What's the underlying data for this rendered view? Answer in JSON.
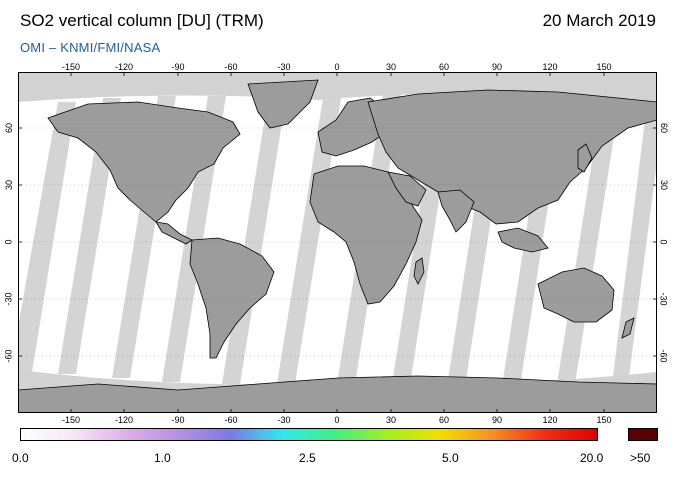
{
  "header": {
    "title": "SO2 vertical column [DU] (TRM)",
    "date": "20 March 2019",
    "source": "OMI  –  KNMI/FMI/NASA"
  },
  "map": {
    "projection": "equirectangular",
    "lon_ticks": [
      "-150",
      "-120",
      "-90",
      "-60",
      "-30",
      "0",
      "30",
      "60",
      "90",
      "120",
      "150"
    ],
    "lat_ticks": [
      "60",
      "30",
      "0",
      "-30",
      "-60"
    ],
    "legend_colors": {
      "land_no_data": "#9c9c9c",
      "ocean_no_data": "#d2d2d2",
      "low_so2": "#ffffff"
    }
  },
  "colorbar": {
    "tick_labels": [
      "0.0",
      "1.0",
      "2.5",
      "5.0",
      "20.0"
    ],
    "overflow_label": ">50",
    "overflow_color": "#5a0000",
    "gradient_colors": [
      "#ffffff",
      "#f6e6f8",
      "#e0b0ea",
      "#b890e0",
      "#7a7ae8",
      "#30e8f0",
      "#40f080",
      "#a0f020",
      "#f0e000",
      "#f89020",
      "#f03010",
      "#e00000"
    ]
  }
}
